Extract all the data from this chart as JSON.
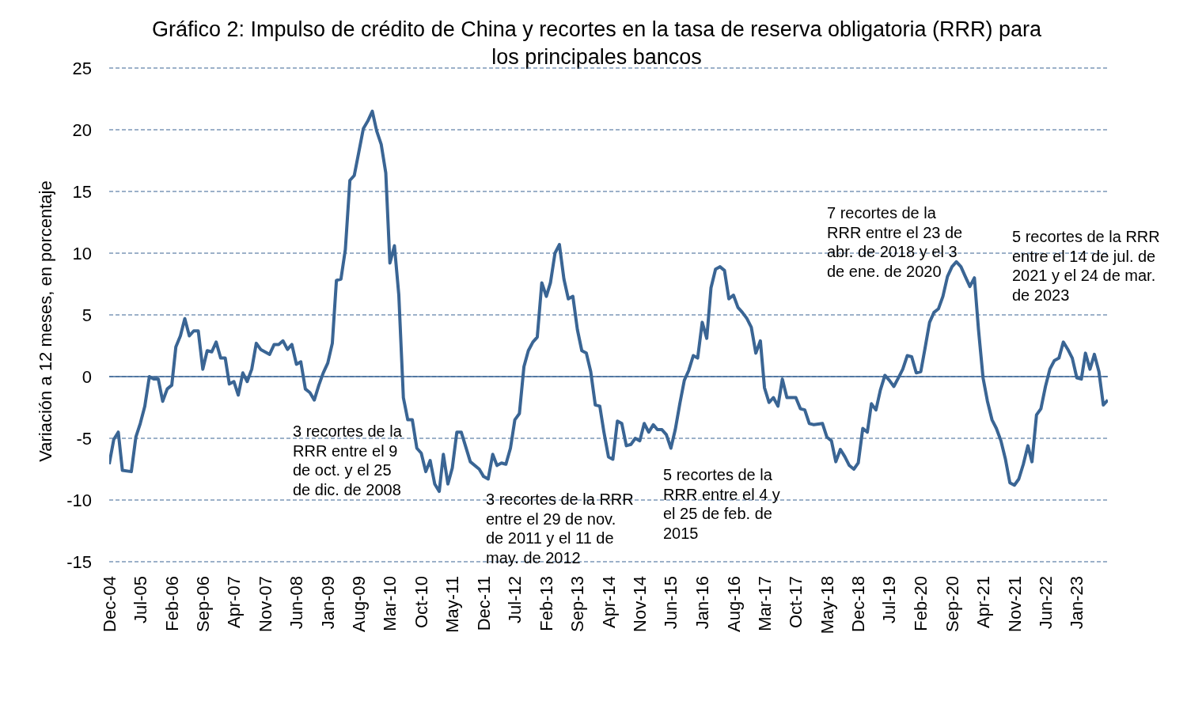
{
  "chart_data": {
    "type": "line",
    "title": "Gráfico 2: Impulso de crédito de China y recortes en la tasa de reserva obligatoria (RRR) para los principales bancos",
    "ylabel": "Variación a 12 meses, en porcentaje",
    "x": [
      "2004-12",
      "2005-01",
      "2005-02",
      "2005-03",
      "2005-05",
      "2005-06",
      "2005-07",
      "2005-08",
      "2005-09",
      "2005-10",
      "2005-11",
      "2005-12",
      "2006-01",
      "2006-02",
      "2006-03",
      "2006-04",
      "2006-05",
      "2006-06",
      "2006-07",
      "2006-08",
      "2006-09",
      "2006-10",
      "2006-11",
      "2006-12",
      "2007-01",
      "2007-02",
      "2007-03",
      "2007-04",
      "2007-05",
      "2007-06",
      "2007-07",
      "2007-08",
      "2007-09",
      "2007-10",
      "2007-12",
      "2008-01",
      "2008-02",
      "2008-03",
      "2008-04",
      "2008-05",
      "2008-06",
      "2008-07",
      "2008-08",
      "2008-09",
      "2008-10",
      "2008-11",
      "2008-12",
      "2009-01",
      "2009-02",
      "2009-03",
      "2009-04",
      "2009-05",
      "2009-06",
      "2009-07",
      "2009-08",
      "2009-09",
      "2009-10",
      "2009-11",
      "2009-12",
      "2010-01",
      "2010-02",
      "2010-03",
      "2010-04",
      "2010-05",
      "2010-06",
      "2010-07",
      "2010-08",
      "2010-09",
      "2010-10",
      "2010-11",
      "2010-12",
      "2011-01",
      "2011-02",
      "2011-03",
      "2011-04",
      "2011-05",
      "2011-06",
      "2011-07",
      "2011-09",
      "2011-11",
      "2011-12",
      "2012-01",
      "2012-02",
      "2012-03",
      "2012-04",
      "2012-05",
      "2012-06",
      "2012-07",
      "2012-08",
      "2012-09",
      "2012-10",
      "2012-11",
      "2012-12",
      "2013-01",
      "2013-02",
      "2013-03",
      "2013-04",
      "2013-05",
      "2013-06",
      "2013-07",
      "2013-08",
      "2013-09",
      "2013-10",
      "2013-11",
      "2013-12",
      "2014-01",
      "2014-02",
      "2014-03",
      "2014-04",
      "2014-05",
      "2014-06",
      "2014-07",
      "2014-08",
      "2014-09",
      "2014-10",
      "2014-11",
      "2014-12",
      "2015-01",
      "2015-02",
      "2015-03",
      "2015-04",
      "2015-05",
      "2015-06",
      "2015-07",
      "2015-08",
      "2015-09",
      "2015-10",
      "2015-11",
      "2015-12",
      "2016-01",
      "2016-02",
      "2016-03",
      "2016-04",
      "2016-05",
      "2016-06",
      "2016-07",
      "2016-08",
      "2016-09",
      "2016-10",
      "2016-11",
      "2016-12",
      "2017-01",
      "2017-02",
      "2017-03",
      "2017-04",
      "2017-05",
      "2017-06",
      "2017-07",
      "2017-08",
      "2017-10",
      "2017-11",
      "2017-12",
      "2018-01",
      "2018-02",
      "2018-04",
      "2018-05",
      "2018-06",
      "2018-07",
      "2018-08",
      "2018-09",
      "2018-10",
      "2018-11",
      "2018-12",
      "2019-01",
      "2019-02",
      "2019-03",
      "2019-04",
      "2019-05",
      "2019-06",
      "2019-07",
      "2019-08",
      "2019-09",
      "2019-10",
      "2019-11",
      "2019-12",
      "2020-01",
      "2020-02",
      "2020-03",
      "2020-04",
      "2020-05",
      "2020-06",
      "2020-07",
      "2020-08",
      "2020-09",
      "2020-10",
      "2020-11",
      "2020-12",
      "2021-01",
      "2021-02",
      "2021-03",
      "2021-04",
      "2021-05",
      "2021-06",
      "2021-07",
      "2021-08",
      "2021-09",
      "2021-10",
      "2021-11",
      "2021-12",
      "2022-01",
      "2022-02",
      "2022-03",
      "2022-04",
      "2022-05",
      "2022-06",
      "2022-07",
      "2022-08",
      "2022-09",
      "2022-10",
      "2022-11",
      "2022-12",
      "2023-01",
      "2023-02",
      "2023-03",
      "2023-04",
      "2023-05",
      "2023-06",
      "2023-07",
      "2023-08"
    ],
    "series": [
      {
        "color": "#3a6594",
        "values": [
          -7.1,
          -5.1,
          -4.5,
          -7.6,
          -7.7,
          -4.9,
          -3.8,
          -2.4,
          0,
          -0.2,
          -0.2,
          -2.0,
          -1.0,
          -0.7,
          2.4,
          3.3,
          4.7,
          3.3,
          3.7,
          3.7,
          0.6,
          2.1,
          2.0,
          2.8,
          1.5,
          1.5,
          -0.6,
          -0.4,
          -1.5,
          0.3,
          -0.4,
          0.6,
          2.7,
          2.2,
          1.8,
          2.6,
          2.6,
          2.9,
          2.2,
          2.6,
          1.0,
          1.2,
          -1.0,
          -1.3,
          -1.9,
          -0.7,
          0.3,
          1.1,
          2.7,
          7.8,
          7.9,
          10.3,
          15.9,
          16.3,
          18.2,
          20.1,
          20.7,
          21.5,
          19.9,
          18.8,
          16.5,
          9.2,
          10.6,
          6.6,
          -1.7,
          -3.5,
          -3.5,
          -5.8,
          -6.2,
          -7.7,
          -6.8,
          -8.7,
          -9.3,
          -6.3,
          -8.7,
          -7.4,
          -4.5,
          -4.5,
          -6.9,
          -7.5,
          -8.1,
          -8.3,
          -6.3,
          -7.2,
          -7.0,
          -7.1,
          -5.8,
          -3.5,
          -3.0,
          0.8,
          2.1,
          2.8,
          3.2,
          7.6,
          6.5,
          7.6,
          10.0,
          10.7,
          7.9,
          6.3,
          6.5,
          3.8,
          2.1,
          1.9,
          0.4,
          -2.3,
          -2.4,
          -4.5,
          -6.5,
          -6.7,
          -3.6,
          -3.8,
          -5.6,
          -5.5,
          -5.0,
          -5.2,
          -3.8,
          -4.5,
          -3.9,
          -4.3,
          -4.3,
          -4.7,
          -5.8,
          -4.3,
          -2.2,
          -0.3,
          0.5,
          1.7,
          1.5,
          4.4,
          3.1,
          7.2,
          8.7,
          8.9,
          8.6,
          6.3,
          6.6,
          5.6,
          5.2,
          4.7,
          4.0,
          1.9,
          2.9,
          -0.9,
          -2.1,
          -1.7,
          -2.4,
          -0.2,
          -1.7,
          -1.7,
          -2.6,
          -2.7,
          -3.8,
          -3.9,
          -3.8,
          -4.9,
          -5.2,
          -6.9,
          -5.9,
          -6.5,
          -7.2,
          -7.5,
          -7.0,
          -4.2,
          -4.5,
          -2.2,
          -2.7,
          -1.1,
          0.1,
          -0.3,
          -0.8,
          -0.1,
          0.6,
          1.7,
          1.6,
          0.3,
          0.4,
          2.3,
          4.4,
          5.2,
          5.5,
          6.5,
          8.1,
          8.9,
          9.3,
          8.9,
          8.1,
          7.3,
          8.0,
          3.8,
          -0.1,
          -2.0,
          -3.5,
          -4.2,
          -5.2,
          -6.7,
          -8.6,
          -8.8,
          -8.3,
          -7.1,
          -5.6,
          -6.9,
          -3.1,
          -2.6,
          -0.8,
          0.6,
          1.3,
          1.5,
          2.8,
          2.2,
          1.5,
          -0.1,
          -0.2,
          1.9,
          0.6,
          1.8,
          0.4,
          -2.3,
          -1.9
        ]
      }
    ],
    "xlim": [
      "2004-12",
      "2023-08"
    ],
    "xticks": [
      {
        "value": "2004-12",
        "label": "Dec-04"
      },
      {
        "value": "2005-07",
        "label": "Jul-05"
      },
      {
        "value": "2006-02",
        "label": "Feb-06"
      },
      {
        "value": "2006-09",
        "label": "Sep-06"
      },
      {
        "value": "2007-04",
        "label": "Apr-07"
      },
      {
        "value": "2007-11",
        "label": "Nov-07"
      },
      {
        "value": "2008-06",
        "label": "Jun-08"
      },
      {
        "value": "2009-01",
        "label": "Jan-09"
      },
      {
        "value": "2009-08",
        "label": "Aug-09"
      },
      {
        "value": "2010-03",
        "label": "Mar-10"
      },
      {
        "value": "2010-10",
        "label": "Oct-10"
      },
      {
        "value": "2011-05",
        "label": "May-11"
      },
      {
        "value": "2011-12",
        "label": "Dec-11"
      },
      {
        "value": "2012-07",
        "label": "Jul-12"
      },
      {
        "value": "2013-02",
        "label": "Feb-13"
      },
      {
        "value": "2013-09",
        "label": "Sep-13"
      },
      {
        "value": "2014-04",
        "label": "Apr-14"
      },
      {
        "value": "2014-11",
        "label": "Nov-14"
      },
      {
        "value": "2015-06",
        "label": "Jun-15"
      },
      {
        "value": "2016-01",
        "label": "Jan-16"
      },
      {
        "value": "2016-08",
        "label": "Aug-16"
      },
      {
        "value": "2017-03",
        "label": "Mar-17"
      },
      {
        "value": "2017-10",
        "label": "Oct-17"
      },
      {
        "value": "2018-05",
        "label": "May-18"
      },
      {
        "value": "2018-12",
        "label": "Dec-18"
      },
      {
        "value": "2019-07",
        "label": "Jul-19"
      },
      {
        "value": "2020-02",
        "label": "Feb-20"
      },
      {
        "value": "2020-09",
        "label": "Sep-20"
      },
      {
        "value": "2021-04",
        "label": "Apr-21"
      },
      {
        "value": "2021-11",
        "label": "Nov-21"
      },
      {
        "value": "2022-06",
        "label": "Jun-22"
      },
      {
        "value": "2023-01",
        "label": "Jan-23"
      }
    ],
    "ylim": [
      -15,
      25
    ],
    "yticks": [
      -15,
      -10,
      -5,
      0,
      5,
      10,
      15,
      20,
      25
    ],
    "grid": "y",
    "marker": "none",
    "line_style": "solid",
    "ref_lines": [
      {
        "axis": "y",
        "value": 0,
        "color": "#3a6594",
        "line_style": "solid"
      }
    ],
    "annotations": [
      "3 recortes de la RRR entre el 9 de oct. y el 25 de dic. de 2008",
      "3 recortes de la RRR entre el 29 de nov. de 2011 y el 11 de may. de 2012",
      "5 recortes de la RRR entre el 4 y el 25 de feb. de 2015",
      "7 recortes de la RRR entre el 23 de abr. de 2018 y el 3 de ene. de 2020",
      "5 recortes de la RRR entre el 14 de jul. de 2021 y el 24 de mar. de 2023"
    ]
  }
}
